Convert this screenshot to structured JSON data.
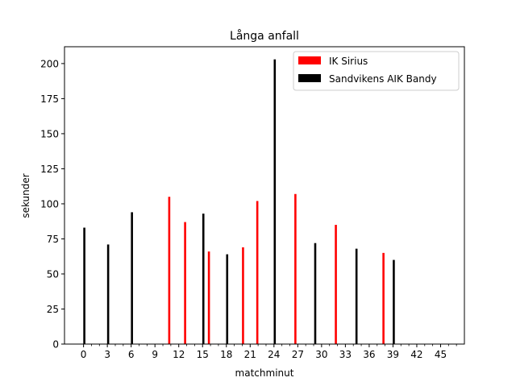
{
  "chart_data": {
    "type": "bar",
    "title": "Långa anfall",
    "xlabel": "matchminut",
    "ylabel": "sekunder",
    "xlim": [
      -2.4,
      48.0
    ],
    "ylim": [
      0,
      212
    ],
    "x_ticks_major": [
      0,
      3,
      6,
      9,
      12,
      15,
      18,
      21,
      24,
      27,
      30,
      33,
      36,
      39,
      42,
      45
    ],
    "x_tick_labels": [
      "0",
      "3",
      "6",
      "9",
      "12",
      "15",
      "18",
      "21",
      "24",
      "27",
      "30",
      "33",
      "36",
      "39",
      "42",
      "45"
    ],
    "x_ticks_minor": [
      1,
      2,
      4,
      5,
      7,
      8,
      10,
      11,
      13,
      14,
      16,
      17,
      19,
      20,
      22,
      23,
      25,
      26,
      28,
      29,
      31,
      32,
      34,
      35,
      37,
      38,
      40,
      41,
      43,
      44,
      46,
      47
    ],
    "y_ticks": [
      0,
      25,
      50,
      75,
      100,
      125,
      150,
      175,
      200
    ],
    "y_tick_labels": [
      "0",
      "25",
      "50",
      "75",
      "100",
      "125",
      "150",
      "175",
      "200"
    ],
    "legend_position": "top-right",
    "series": [
      {
        "name": "IK Sirius",
        "color": "#ff0000",
        "points": [
          {
            "x": 10.8,
            "y": 105
          },
          {
            "x": 12.8,
            "y": 87
          },
          {
            "x": 15.8,
            "y": 66
          },
          {
            "x": 20.1,
            "y": 69
          },
          {
            "x": 21.9,
            "y": 102
          },
          {
            "x": 26.7,
            "y": 107
          },
          {
            "x": 31.8,
            "y": 85
          },
          {
            "x": 37.8,
            "y": 65
          }
        ]
      },
      {
        "name": "Sandvikens AIK Bandy",
        "color": "#000000",
        "points": [
          {
            "x": 0.1,
            "y": 83
          },
          {
            "x": 3.1,
            "y": 71
          },
          {
            "x": 6.1,
            "y": 94
          },
          {
            "x": 15.1,
            "y": 93
          },
          {
            "x": 18.1,
            "y": 64
          },
          {
            "x": 24.1,
            "y": 203
          },
          {
            "x": 29.2,
            "y": 72
          },
          {
            "x": 34.4,
            "y": 68
          },
          {
            "x": 39.1,
            "y": 60
          }
        ]
      }
    ]
  }
}
